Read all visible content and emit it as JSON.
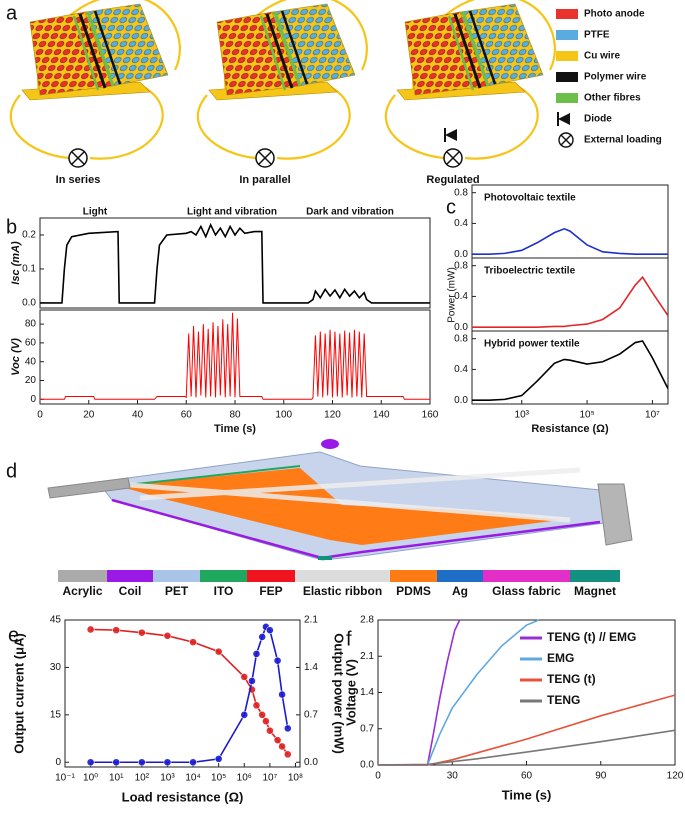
{
  "panel_labels": [
    "a",
    "b",
    "c",
    "d",
    "e",
    "f"
  ],
  "diagram_a": {
    "labels": [
      "In series",
      "In parallel",
      "Regulated"
    ],
    "legend": [
      {
        "name": "Photo anode",
        "color": "#e8322b"
      },
      {
        "name": "PTFE",
        "color": "#5aace0"
      },
      {
        "name": "Cu wire",
        "color": "#f5c518"
      },
      {
        "name": "Polymer wire",
        "color": "#111111"
      },
      {
        "name": "Other fibres",
        "color": "#6cbf4a"
      },
      {
        "name": "Diode"
      },
      {
        "name": "External loading"
      }
    ]
  },
  "diagram_d": {
    "materials": [
      {
        "name": "Acrylic",
        "color": "#aaaaaa"
      },
      {
        "name": "Coil",
        "color": "#9b19e6"
      },
      {
        "name": "PET",
        "color": "#a8c4e8"
      },
      {
        "name": "ITO",
        "color": "#20a860"
      },
      {
        "name": "FEP",
        "color": "#f0141e"
      },
      {
        "name": "Elastic ribbon",
        "color": "#dcdcdc"
      },
      {
        "name": "PDMS",
        "color": "#ff7b16"
      },
      {
        "name": "Ag",
        "color": "#1e6ec8"
      },
      {
        "name": "Glass fabric",
        "color": "#e42ec8"
      },
      {
        "name": "Magnet",
        "color": "#149080"
      }
    ]
  },
  "chart_data": [
    {
      "type": "line",
      "ylabel": "Isc (mA)",
      "annotations": [
        "Light",
        "Light and vibration",
        "Dark and vibration"
      ],
      "xlim": [
        0,
        160
      ],
      "ylim": [
        -0.015,
        0.25
      ],
      "yticks": [
        {
          "value": 0,
          "label": "0.0"
        },
        {
          "value": 0.1,
          "label": "0.1"
        },
        {
          "value": 0.2,
          "label": "0.2"
        }
      ],
      "x": [
        0,
        9,
        10,
        11,
        13,
        20,
        32,
        32.5,
        47,
        48,
        49,
        52,
        60,
        62,
        64,
        66,
        68,
        70,
        72,
        74,
        76,
        78,
        80,
        82,
        84,
        88,
        91,
        91.5,
        110,
        112,
        113,
        115,
        117,
        119,
        121,
        123,
        125,
        127,
        129,
        131,
        133,
        134,
        136,
        160
      ],
      "series": [
        {
          "name": "Isc",
          "color": "#000000",
          "values": [
            0,
            0,
            0.1,
            0.17,
            0.195,
            0.205,
            0.21,
            0,
            0,
            0.1,
            0.17,
            0.2,
            0.205,
            0.21,
            0.2,
            0.225,
            0.195,
            0.23,
            0.2,
            0.22,
            0.195,
            0.225,
            0.2,
            0.22,
            0.205,
            0.21,
            0.21,
            0,
            0,
            0.01,
            0.035,
            0.015,
            0.04,
            0.02,
            0.038,
            0.015,
            0.04,
            0.02,
            0.035,
            0.015,
            0.03,
            0.01,
            0,
            0
          ]
        }
      ]
    },
    {
      "type": "line",
      "ylabel": "Voc (V)",
      "xlabel": "Time (s)",
      "xlim": [
        0,
        160
      ],
      "ylim": [
        -5,
        95
      ],
      "xticks": [
        0,
        20,
        40,
        60,
        80,
        100,
        120,
        140,
        160
      ],
      "yticks": [
        0,
        20,
        40,
        60,
        80
      ],
      "x": [
        0,
        10,
        10.5,
        22,
        22.5,
        47,
        48,
        59.5,
        60,
        61,
        62,
        63,
        64,
        65,
        66,
        67,
        68,
        69,
        70,
        71,
        72,
        73,
        74,
        75,
        76,
        77,
        78,
        79,
        80,
        81,
        82,
        82.5,
        91,
        91.5,
        111.5,
        112,
        113,
        114,
        115,
        116,
        117,
        118,
        119,
        120,
        121,
        122,
        123,
        124,
        125,
        126,
        127,
        128,
        129,
        130,
        131,
        132,
        133,
        134,
        134.5,
        149,
        149.5,
        160
      ],
      "series": [
        {
          "name": "Voc",
          "color": "#ff0000",
          "values": [
            0,
            0,
            3,
            3,
            0,
            0,
            3,
            3,
            2,
            70,
            3,
            78,
            2,
            72,
            4,
            80,
            2,
            75,
            3,
            82,
            2,
            78,
            4,
            85,
            2,
            80,
            3,
            92,
            2,
            86,
            3,
            3,
            3,
            0,
            0,
            2,
            68,
            3,
            72,
            2,
            70,
            4,
            74,
            2,
            72,
            3,
            70,
            2,
            73,
            4,
            71,
            2,
            74,
            3,
            72,
            2,
            70,
            3,
            3,
            3,
            0,
            0
          ]
        }
      ]
    },
    {
      "type": "line",
      "title": "Photovoltaic textile",
      "xlog": true,
      "xlim": [
        30,
        30000000
      ],
      "ylim": [
        -0.05,
        0.9
      ],
      "yticks": [
        {
          "value": 0,
          "label": "0.0"
        },
        {
          "value": 0.4,
          "label": "0.4"
        },
        {
          "value": 0.8,
          "label": "0.8"
        }
      ],
      "x": [
        30,
        100,
        300,
        1000,
        3000,
        10000,
        20000,
        30000,
        100000,
        300000,
        1000000,
        3000000,
        5000000,
        10000000,
        30000000
      ],
      "series": [
        {
          "name": "Photovoltaic textile",
          "color": "#1f2fcf",
          "values": [
            0,
            0,
            0.01,
            0.05,
            0.15,
            0.28,
            0.33,
            0.3,
            0.12,
            0.03,
            0.01,
            0,
            0,
            0,
            0
          ]
        }
      ]
    },
    {
      "type": "line",
      "title": "Triboelectric textile",
      "ylabel": "Power (mW)",
      "xlog": true,
      "xlim": [
        30,
        30000000
      ],
      "ylim": [
        -0.05,
        0.9
      ],
      "yticks": [
        {
          "value": 0,
          "label": "0.0"
        },
        {
          "value": 0.4,
          "label": "0.4"
        },
        {
          "value": 0.8,
          "label": "0.8"
        }
      ],
      "x": [
        30,
        100,
        300,
        1000,
        3000,
        10000,
        20000,
        30000,
        100000,
        300000,
        1000000,
        3000000,
        5000000,
        10000000,
        30000000
      ],
      "series": [
        {
          "name": "Triboelectric textile",
          "color": "#e3262a",
          "values": [
            0,
            0,
            0,
            0,
            0,
            0.01,
            0.01,
            0.02,
            0.04,
            0.1,
            0.25,
            0.55,
            0.65,
            0.45,
            0.15
          ]
        }
      ]
    },
    {
      "type": "line",
      "title": "Hybrid power textile",
      "xlabel": "Resistance (Ω)",
      "xlog": true,
      "xlim": [
        30,
        30000000
      ],
      "ylim": [
        -0.05,
        0.9
      ],
      "xticks": [
        {
          "value": 1000,
          "label": "10³"
        },
        {
          "value": 100000,
          "label": "10⁵"
        },
        {
          "value": 10000000,
          "label": "10⁷"
        }
      ],
      "yticks": [
        {
          "value": 0,
          "label": "0.0"
        },
        {
          "value": 0.4,
          "label": "0.4"
        },
        {
          "value": 0.8,
          "label": "0.8"
        }
      ],
      "x": [
        30,
        100,
        300,
        1000,
        3000,
        10000,
        20000,
        30000,
        100000,
        300000,
        1000000,
        3000000,
        5000000,
        10000000,
        30000000
      ],
      "series": [
        {
          "name": "Hybrid power textile",
          "color": "#000000",
          "values": [
            0,
            0,
            0.01,
            0.06,
            0.25,
            0.48,
            0.53,
            0.52,
            0.47,
            0.5,
            0.6,
            0.75,
            0.77,
            0.55,
            0.15
          ]
        }
      ]
    },
    {
      "type": "line",
      "xlog": true,
      "marker": "circle",
      "xlabel": "Load resistance (Ω)",
      "ylabel": "Output current (μA)",
      "y2label": "Output power (mW)",
      "xlim": [
        0.1,
        150000000
      ],
      "ylim": [
        -1.5,
        45
      ],
      "y2lim": [
        -0.07,
        2.1
      ],
      "xticks": [
        {
          "value": 0.1,
          "label": "10⁻¹"
        },
        {
          "value": 1,
          "label": "10⁰"
        },
        {
          "value": 10,
          "label": "10¹"
        },
        {
          "value": 100,
          "label": "10²"
        },
        {
          "value": 1000,
          "label": "10³"
        },
        {
          "value": 10000,
          "label": "10⁴"
        },
        {
          "value": 100000,
          "label": "10⁵"
        },
        {
          "value": 1000000,
          "label": "10⁶"
        },
        {
          "value": 10000000,
          "label": "10⁷"
        },
        {
          "value": 100000000,
          "label": "10⁸"
        }
      ],
      "yticks": [
        0,
        15,
        30,
        45
      ],
      "y2ticks": [
        {
          "value": 0,
          "label": "0.0"
        },
        {
          "value": 0.7,
          "label": "0.7"
        },
        {
          "value": 1.4,
          "label": "1.4"
        },
        {
          "value": 2.1,
          "label": "2.1"
        }
      ],
      "x": [
        1,
        10,
        100,
        1000,
        10000,
        100000,
        1000000,
        2000000,
        3000000,
        5000000,
        7000000,
        10000000,
        20000000,
        30000000,
        50000000
      ],
      "series": [
        {
          "name": "Output current",
          "color": "#e02020",
          "values": [
            42,
            41.8,
            41,
            40,
            38,
            35,
            27,
            23,
            18,
            15,
            13,
            10,
            7,
            5,
            2.5
          ]
        },
        {
          "name": "Output power",
          "color": "#1a1ad0",
          "axis": "y2",
          "values": [
            0,
            0,
            0,
            0,
            0,
            0.05,
            0.7,
            1.2,
            1.6,
            1.85,
            2.0,
            1.95,
            1.5,
            1.0,
            0.5
          ]
        }
      ]
    },
    {
      "type": "line",
      "xlabel": "Time (s)",
      "ylabel": "Voltage (V)",
      "legend": "upper right",
      "xlim": [
        0,
        120
      ],
      "ylim": [
        0,
        2.8
      ],
      "xticks": [
        0,
        30,
        60,
        90,
        120
      ],
      "yticks": [
        {
          "value": 0,
          "label": "0.0"
        },
        {
          "value": 0.7,
          "label": "0.7"
        },
        {
          "value": 1.4,
          "label": "1.4"
        },
        {
          "value": 2.1,
          "label": "2.1"
        },
        {
          "value": 2.8,
          "label": "2.8"
        }
      ],
      "series": [
        {
          "name": "TENG (t) // EMG",
          "color": "#9a2fd0",
          "x": [
            0,
            20,
            22,
            25,
            28,
            31,
            33
          ],
          "values": [
            0,
            0,
            0.5,
            1.3,
            2.0,
            2.6,
            2.8
          ]
        },
        {
          "name": "EMG",
          "color": "#5fa8e0",
          "x": [
            0,
            20,
            25,
            30,
            40,
            50,
            60,
            65
          ],
          "values": [
            0,
            0,
            0.6,
            1.1,
            1.75,
            2.3,
            2.7,
            2.8
          ]
        },
        {
          "name": "TENG (t)",
          "color": "#e5533a",
          "x": [
            0,
            20,
            30,
            60,
            90,
            120
          ],
          "values": [
            0,
            0,
            0.1,
            0.5,
            0.95,
            1.35
          ]
        },
        {
          "name": "TENG",
          "color": "#777777",
          "x": [
            0,
            20,
            40,
            60,
            90,
            120
          ],
          "values": [
            0,
            0.01,
            0.12,
            0.25,
            0.45,
            0.67
          ]
        }
      ]
    }
  ]
}
